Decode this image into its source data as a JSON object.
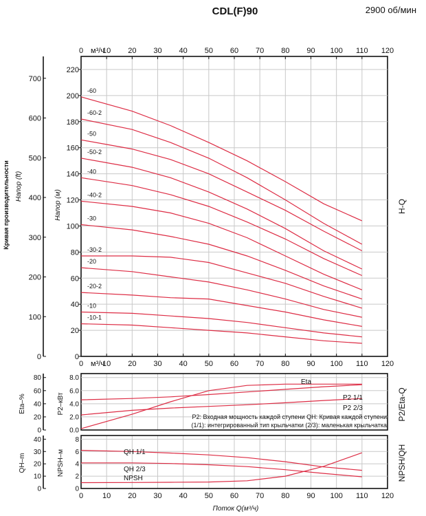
{
  "header": {
    "title": "CDL(F)90",
    "speed": "2900 об/мин"
  },
  "chart_data": [
    {
      "type": "line",
      "name": "H-Q",
      "panel_label": "H-Q",
      "x_unit_label": "м³/ч",
      "x_ticks_top": [
        "0",
        "10",
        "20",
        "30",
        "40",
        "50",
        "60",
        "70",
        "80",
        "90",
        "100",
        "110",
        "120"
      ],
      "x_ticks_bottom": [
        "0",
        "10",
        "20",
        "30",
        "40",
        "50",
        "60",
        "70",
        "80",
        "90",
        "100",
        "110",
        "120"
      ],
      "xlim": [
        0,
        120
      ],
      "ylabel": "Напор (м)",
      "ylim": [
        0,
        230
      ],
      "y_ticks": [
        "0",
        "20",
        "40",
        "60",
        "80",
        "100",
        "120",
        "140",
        "160",
        "180",
        "200",
        "220"
      ],
      "left_axis_label": "Кривая производительности",
      "left_axis_sublabel": "Напор (ft)",
      "left_axis_ticks": [
        "0",
        "100",
        "200",
        "300",
        "400",
        "500",
        "600",
        "700"
      ],
      "left_axis_ylim": [
        0,
        755
      ],
      "series": [
        {
          "name": "-60",
          "x": [
            0,
            20,
            35,
            50,
            65,
            80,
            95,
            110
          ],
          "y": [
            199,
            188,
            177,
            164,
            150,
            134,
            117,
            104
          ]
        },
        {
          "name": "-60-2",
          "x": [
            0,
            20,
            35,
            50,
            65,
            80,
            95,
            110
          ],
          "y": [
            182,
            174,
            164,
            152,
            137,
            120,
            102,
            86
          ]
        },
        {
          "name": "-50",
          "x": [
            0,
            20,
            35,
            50,
            65,
            80,
            95,
            110
          ],
          "y": [
            166,
            159,
            151,
            140,
            126,
            112,
            96,
            81
          ]
        },
        {
          "name": "-50-2",
          "x": [
            0,
            20,
            35,
            50,
            65,
            80,
            95,
            110
          ],
          "y": [
            152,
            145,
            137,
            126,
            113,
            98,
            81,
            67
          ]
        },
        {
          "name": "-40",
          "x": [
            0,
            20,
            35,
            50,
            65,
            80,
            95,
            110
          ],
          "y": [
            137,
            131,
            124,
            115,
            103,
            90,
            75,
            62
          ]
        },
        {
          "name": "-40-2",
          "x": [
            0,
            20,
            35,
            50,
            65,
            80,
            95,
            110
          ],
          "y": [
            119,
            115,
            110,
            102,
            91,
            77,
            63,
            51
          ]
        },
        {
          "name": "-30",
          "x": [
            0,
            20,
            35,
            50,
            65,
            80,
            95,
            110
          ],
          "y": [
            101,
            97,
            92,
            86,
            77,
            66,
            54,
            44
          ]
        },
        {
          "name": "-30-2",
          "x": [
            0,
            20,
            35,
            50,
            65,
            80,
            95,
            110
          ],
          "y": [
            77,
            77,
            76,
            72,
            64,
            56,
            46,
            37
          ]
        },
        {
          "name": "-20",
          "x": [
            0,
            20,
            35,
            50,
            65,
            80,
            95,
            110
          ],
          "y": [
            68,
            65,
            61,
            57,
            51,
            44,
            36,
            30
          ]
        },
        {
          "name": "-20-2",
          "x": [
            0,
            20,
            35,
            50,
            65,
            80,
            95,
            110
          ],
          "y": [
            49,
            47,
            45,
            44,
            39,
            34,
            28,
            23
          ]
        },
        {
          "name": "-10",
          "x": [
            0,
            20,
            35,
            50,
            65,
            80,
            95,
            110
          ],
          "y": [
            34,
            33,
            31,
            29,
            26,
            22,
            18,
            15
          ]
        },
        {
          "name": "-10-1",
          "x": [
            0,
            20,
            35,
            50,
            65,
            80,
            95,
            110
          ],
          "y": [
            25,
            24,
            22,
            20,
            18,
            15,
            12,
            10
          ]
        }
      ]
    },
    {
      "type": "line",
      "name": "P2/Eta-Q",
      "panel_label": "P2/Eta-Q",
      "ylabel": "P2–кВт",
      "ylim": [
        0,
        8.6
      ],
      "y_ticks": [
        "0.0",
        "2.0",
        "4.0",
        "6.0",
        "8.0"
      ],
      "left_axis_label": "Eta–%",
      "left_axis_ticks": [
        "0",
        "20",
        "40",
        "60",
        "80"
      ],
      "xlim": [
        0,
        120
      ],
      "series": [
        {
          "name": "Eta",
          "x": [
            0,
            20,
            35,
            50,
            65,
            80,
            95,
            110
          ],
          "y": [
            0.2,
            2.4,
            4.3,
            6.0,
            6.8,
            7.0,
            7.0,
            7.0
          ]
        },
        {
          "name": "P2 1/1",
          "x": [
            0,
            20,
            35,
            50,
            65,
            80,
            95,
            110
          ],
          "y": [
            4.6,
            4.8,
            5.05,
            5.4,
            5.8,
            6.2,
            6.6,
            6.9
          ]
        },
        {
          "name": "P2 2/3",
          "x": [
            0,
            20,
            35,
            50,
            65,
            80,
            95,
            110
          ],
          "y": [
            2.3,
            3.0,
            3.35,
            3.6,
            3.85,
            4.15,
            4.5,
            4.8
          ]
        }
      ],
      "annotations": [
        "P2: Входная мощность каждой ступени QH: Кривая каждой ступени",
        "(1/1): интегрированный тип крыльчатки     (2/3): маленькая крыльчатка"
      ]
    },
    {
      "type": "line",
      "name": "NPSH/QH",
      "panel_label": "NPSH/QH",
      "ylabel": "NPSH–м",
      "ylim": [
        0,
        8.6
      ],
      "y_ticks": [
        "0",
        "2",
        "4",
        "6",
        "8"
      ],
      "left_axis_label": "QH–m",
      "left_axis_ticks": [
        "0",
        "10",
        "20",
        "30",
        "40"
      ],
      "xlabel": "Поток Q(м³/ч)",
      "x_ticks": [
        "0",
        "10",
        "20",
        "30",
        "40",
        "50",
        "60",
        "70",
        "80",
        "90",
        "100",
        "110",
        "120"
      ],
      "xlim": [
        0,
        120
      ],
      "series": [
        {
          "name": "QH 1/1",
          "x": [
            0,
            20,
            35,
            50,
            65,
            80,
            95,
            110
          ],
          "y": [
            6.2,
            6.0,
            5.75,
            5.45,
            5.0,
            4.35,
            3.5,
            2.95
          ]
        },
        {
          "name": "QH 2/3",
          "x": [
            0,
            20,
            35,
            50,
            65,
            80,
            95,
            110
          ],
          "y": [
            4.15,
            4.15,
            4.05,
            3.85,
            3.55,
            3.05,
            2.45,
            1.9
          ]
        },
        {
          "name": "NPSH",
          "x": [
            0,
            20,
            35,
            50,
            65,
            80,
            95,
            110
          ],
          "y": [
            0.95,
            0.97,
            1.0,
            1.05,
            1.25,
            2.0,
            3.6,
            5.8
          ]
        }
      ]
    }
  ],
  "colors": {
    "curve": "#dd2c44",
    "grid": "#c8c8c8",
    "axis": "#111111"
  }
}
